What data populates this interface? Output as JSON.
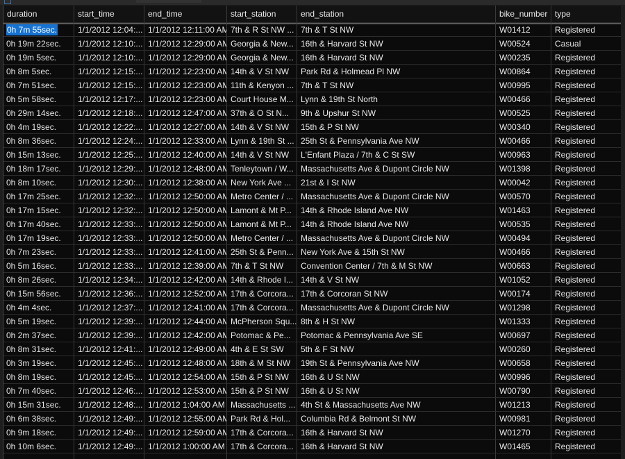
{
  "columns": [
    "duration",
    "start_time",
    "end_time",
    "start_station",
    "end_station",
    "bike_number",
    "type"
  ],
  "rows": [
    [
      "0h 7m 55sec.",
      "1/1/2012 12:04:...",
      "1/1/2012 12:11:00 AM",
      "7th & R St NW ...",
      "7th & T St NW",
      "W01412",
      "Registered"
    ],
    [
      "0h 19m 22sec.",
      "1/1/2012 12:10:...",
      "1/1/2012 12:29:00 AM",
      "Georgia & New...",
      "16th & Harvard St NW",
      "W00524",
      "Casual"
    ],
    [
      "0h 19m 5sec.",
      "1/1/2012 12:10:...",
      "1/1/2012 12:29:00 AM",
      "Georgia & New...",
      "16th & Harvard St NW",
      "W00235",
      "Registered"
    ],
    [
      "0h 8m 5sec.",
      "1/1/2012 12:15:...",
      "1/1/2012 12:23:00 AM",
      "14th & V St NW",
      "Park Rd & Holmead Pl NW",
      "W00864",
      "Registered"
    ],
    [
      "0h 7m 51sec.",
      "1/1/2012 12:15:...",
      "1/1/2012 12:23:00 AM",
      "11th & Kenyon ...",
      "7th & T St NW",
      "W00995",
      "Registered"
    ],
    [
      "0h 5m 58sec.",
      "1/1/2012 12:17:...",
      "1/1/2012 12:23:00 AM",
      "Court House M...",
      "Lynn & 19th St North",
      "W00466",
      "Registered"
    ],
    [
      "0h 29m 14sec.",
      "1/1/2012 12:18:...",
      "1/1/2012 12:47:00 AM",
      "37th & O St N...",
      "9th & Upshur St NW",
      "W00525",
      "Registered"
    ],
    [
      "0h 4m 19sec.",
      "1/1/2012 12:22:...",
      "1/1/2012 12:27:00 AM",
      "14th & V St NW",
      "15th & P St NW",
      "W00340",
      "Registered"
    ],
    [
      "0h 8m 36sec.",
      "1/1/2012 12:24:...",
      "1/1/2012 12:33:00 AM",
      "Lynn & 19th St ...",
      "25th St & Pennsylvania Ave NW",
      "W00466",
      "Registered"
    ],
    [
      "0h 15m 13sec.",
      "1/1/2012 12:25:...",
      "1/1/2012 12:40:00 AM",
      "14th & V St NW",
      "L'Enfant Plaza / 7th & C St SW",
      "W00963",
      "Registered"
    ],
    [
      "0h 18m 17sec.",
      "1/1/2012 12:29:...",
      "1/1/2012 12:48:00 AM",
      "Tenleytown / W...",
      "Massachusetts Ave & Dupont Circle NW",
      "W01398",
      "Registered"
    ],
    [
      "0h 8m 10sec.",
      "1/1/2012 12:30:...",
      "1/1/2012 12:38:00 AM",
      "New York Ave ...",
      "21st & I St NW",
      "W00042",
      "Registered"
    ],
    [
      "0h 17m 25sec.",
      "1/1/2012 12:32:...",
      "1/1/2012 12:50:00 AM",
      "Metro Center / ...",
      "Massachusetts Ave & Dupont Circle NW",
      "W00570",
      "Registered"
    ],
    [
      "0h 17m 15sec.",
      "1/1/2012 12:32:...",
      "1/1/2012 12:50:00 AM",
      "Lamont & Mt P...",
      "14th & Rhode Island Ave NW",
      "W01463",
      "Registered"
    ],
    [
      "0h 17m 40sec.",
      "1/1/2012 12:33:...",
      "1/1/2012 12:50:00 AM",
      "Lamont & Mt P...",
      "14th & Rhode Island Ave NW",
      "W00535",
      "Registered"
    ],
    [
      "0h 17m 19sec.",
      "1/1/2012 12:33:...",
      "1/1/2012 12:50:00 AM",
      "Metro Center / ...",
      "Massachusetts Ave & Dupont Circle NW",
      "W00494",
      "Registered"
    ],
    [
      "0h 7m 23sec.",
      "1/1/2012 12:33:...",
      "1/1/2012 12:41:00 AM",
      "25th St & Penn...",
      "New York Ave & 15th St NW",
      "W00466",
      "Registered"
    ],
    [
      "0h 5m 16sec.",
      "1/1/2012 12:33:...",
      "1/1/2012 12:39:00 AM",
      "7th & T St NW",
      "Convention Center / 7th & M St NW",
      "W00663",
      "Registered"
    ],
    [
      "0h 8m 26sec.",
      "1/1/2012 12:34:...",
      "1/1/2012 12:42:00 AM",
      "14th & Rhode I...",
      "14th & V St NW",
      "W01052",
      "Registered"
    ],
    [
      "0h 15m 56sec.",
      "1/1/2012 12:36:...",
      "1/1/2012 12:52:00 AM",
      "17th & Corcora...",
      "17th & Corcoran St NW",
      "W00174",
      "Registered"
    ],
    [
      "0h 4m 4sec.",
      "1/1/2012 12:37:...",
      "1/1/2012 12:41:00 AM",
      "17th & Corcora...",
      "Massachusetts Ave & Dupont Circle NW",
      "W01298",
      "Registered"
    ],
    [
      "0h 5m 19sec.",
      "1/1/2012 12:39:...",
      "1/1/2012 12:44:00 AM",
      "McPherson Squ...",
      "8th & H St NW",
      "W01333",
      "Registered"
    ],
    [
      "0h 2m 37sec.",
      "1/1/2012 12:39:...",
      "1/1/2012 12:42:00 AM",
      "Potomac & Pe...",
      "Potomac & Pennsylvania Ave SE",
      "W00697",
      "Registered"
    ],
    [
      "0h 8m 31sec.",
      "1/1/2012 12:41:...",
      "1/1/2012 12:49:00 AM",
      "4th & E St SW",
      "5th & F St NW",
      "W00260",
      "Registered"
    ],
    [
      "0h 3m 19sec.",
      "1/1/2012 12:45:...",
      "1/1/2012 12:48:00 AM",
      "18th & M St NW",
      "19th St & Pennsylvania Ave NW",
      "W00658",
      "Registered"
    ],
    [
      "0h 8m 19sec.",
      "1/1/2012 12:45:...",
      "1/1/2012 12:54:00 AM",
      "15th & P St NW",
      "16th & U St NW",
      "W00996",
      "Registered"
    ],
    [
      "0h 7m 40sec.",
      "1/1/2012 12:46:...",
      "1/1/2012 12:53:00 AM",
      "15th & P St NW",
      "16th & U St NW",
      "W00790",
      "Registered"
    ],
    [
      "0h 15m 31sec.",
      "1/1/2012 12:48:...",
      "1/1/2012 1:04:00 AM",
      "Massachusetts ...",
      "4th St & Massachusetts Ave NW",
      "W01213",
      "Registered"
    ],
    [
      "0h 6m 38sec.",
      "1/1/2012 12:49:...",
      "1/1/2012 12:55:00 AM",
      "Park Rd & Hol...",
      "Columbia Rd & Belmont St NW",
      "W00981",
      "Registered"
    ],
    [
      "0h 9m 18sec.",
      "1/1/2012 12:49:...",
      "1/1/2012 12:59:00 AM",
      "17th & Corcora...",
      "16th & Harvard St NW",
      "W01270",
      "Registered"
    ],
    [
      "0h 10m 6sec.",
      "1/1/2012 12:49:...",
      "1/1/2012 1:00:00 AM",
      "17th & Corcora...",
      "16th & Harvard St NW",
      "W01465",
      "Registered"
    ]
  ]
}
